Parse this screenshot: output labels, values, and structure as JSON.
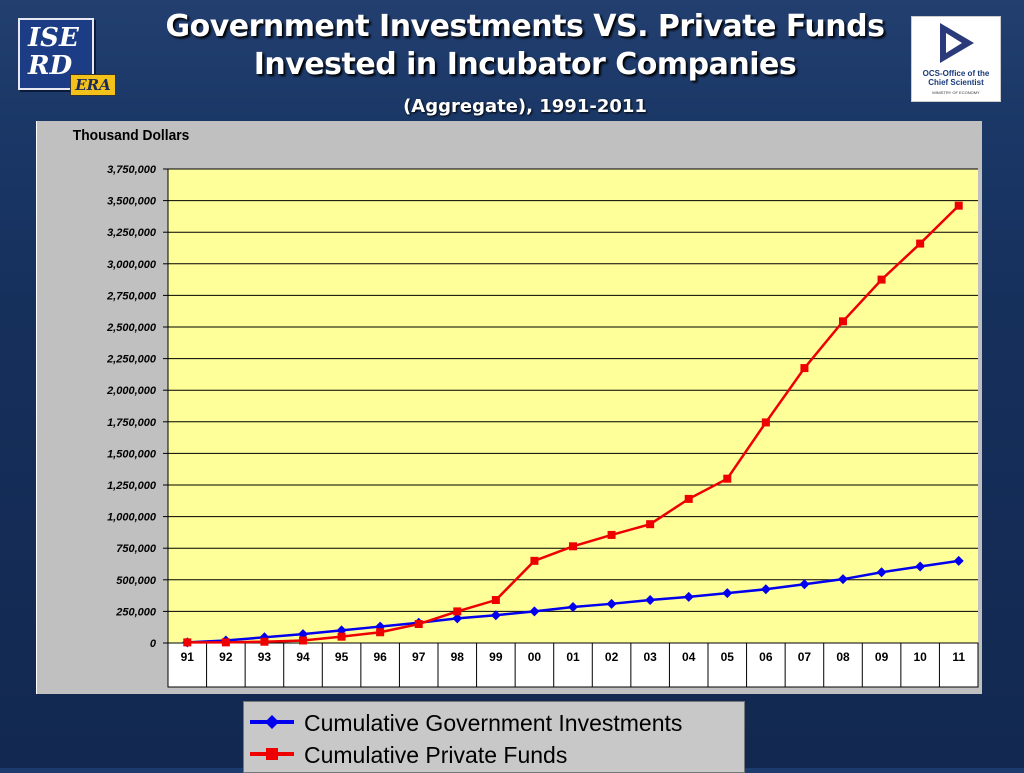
{
  "header": {
    "title_line1": "Government Investments VS. Private Funds",
    "title_line2": "Invested in Incubator Companies",
    "subtitle": "(Aggregate), 1991-2011"
  },
  "logos": {
    "left_text": "ISE\nRD",
    "left_badge": "ERA",
    "right_text": "OCS-Office of the Chief Scientist",
    "right_subtext": "MINISTRY OF ECONOMY"
  },
  "chart_data": {
    "type": "line",
    "ylabel": "Thousand Dollars",
    "ylim": [
      0,
      3750000
    ],
    "yticks": [
      "0",
      "250,000",
      "500,000",
      "750,000",
      "1,000,000",
      "1,250,000",
      "1,500,000",
      "1,750,000",
      "2,000,000",
      "2,250,000",
      "2,500,000",
      "2,750,000",
      "3,000,000",
      "3,250,000",
      "3,500,000",
      "3,750,000"
    ],
    "categories": [
      "91",
      "92",
      "93",
      "94",
      "95",
      "96",
      "97",
      "98",
      "99",
      "00",
      "01",
      "02",
      "03",
      "04",
      "05",
      "06",
      "07",
      "08",
      "09",
      "10",
      "11"
    ],
    "series": [
      {
        "name": "Cumulative Government Investments",
        "color": "#0000ee",
        "marker": "diamond",
        "values": [
          5000,
          20000,
          45000,
          70000,
          100000,
          130000,
          160000,
          195000,
          220000,
          250000,
          285000,
          310000,
          340000,
          365000,
          395000,
          425000,
          465000,
          505000,
          560000,
          605000,
          650000
        ]
      },
      {
        "name": "Cumulative Private Funds",
        "color": "#ee0000",
        "marker": "square",
        "values": [
          5000,
          5000,
          10000,
          20000,
          50000,
          85000,
          150000,
          250000,
          340000,
          650000,
          765000,
          855000,
          940000,
          1140000,
          1300000,
          1745000,
          2175000,
          2545000,
          2875000,
          3160000,
          3460000
        ]
      }
    ],
    "grid": true,
    "plot_background": "#ffff99",
    "legend_position": "bottom"
  }
}
